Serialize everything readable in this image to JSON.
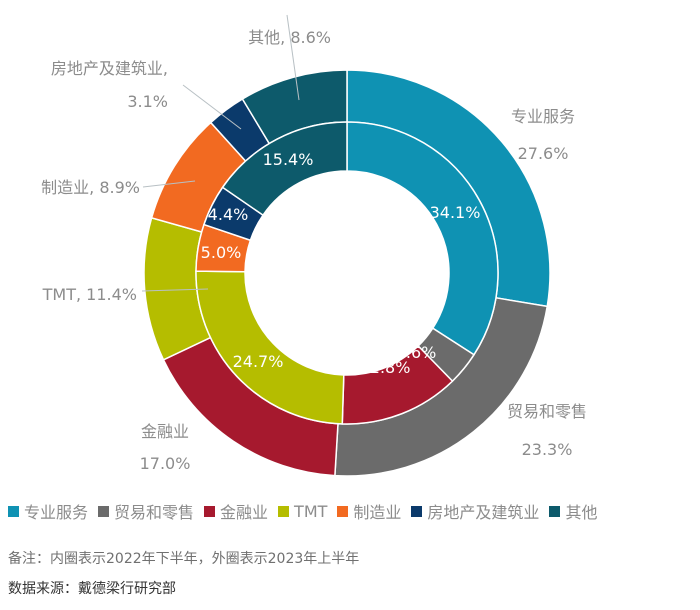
{
  "chart_data": {
    "type": "pie",
    "subtype": "nested-donut",
    "title": "",
    "categories": [
      "专业服务",
      "贸易和零售",
      "金融业",
      "TMT",
      "制造业",
      "房地产及建筑业",
      "其他"
    ],
    "colors": [
      "#0f92b3",
      "#6b6b6b",
      "#a6192e",
      "#b5bd00",
      "#f26a21",
      "#0b3a6b",
      "#0d5a6b"
    ],
    "series": [
      {
        "name": "2022年下半年 (内圈)",
        "ring": "inner",
        "values": [
          34.1,
          3.6,
          12.8,
          24.7,
          5.0,
          4.4,
          15.4
        ]
      },
      {
        "name": "2023年上半年 (外圈)",
        "ring": "outer",
        "values": [
          27.6,
          23.3,
          17.0,
          11.4,
          8.9,
          3.1,
          8.6
        ]
      }
    ],
    "unit": "%",
    "legend_position": "bottom"
  },
  "outer_labels": [
    {
      "line1": "专业服务",
      "line2": "27.6%"
    },
    {
      "line1": "贸易和零售",
      "line2": "23.3%"
    },
    {
      "line1": "金融业",
      "line2": "17.0%"
    },
    {
      "line1": "TMT, 11.4%",
      "line2": ""
    },
    {
      "line1": "制造业, 8.9%",
      "line2": ""
    },
    {
      "line1": "房地产及建筑业,",
      "line2": "3.1%"
    },
    {
      "line1": "其他, 8.6%",
      "line2": ""
    }
  ],
  "inner_labels": [
    "34.1%",
    "3.6%",
    "12.8%",
    "24.7%",
    "5.0%",
    "4.4%",
    "15.4%"
  ],
  "legend": [
    {
      "label": "专业服务",
      "color": "#0f92b3"
    },
    {
      "label": "贸易和零售",
      "color": "#6b6b6b"
    },
    {
      "label": "金融业",
      "color": "#a6192e"
    },
    {
      "label": "TMT",
      "color": "#b5bd00"
    },
    {
      "label": "制造业",
      "color": "#f26a21"
    },
    {
      "label": "房地产及建筑业",
      "color": "#0b3a6b"
    },
    {
      "label": "其他",
      "color": "#0d5a6b"
    }
  ],
  "notes": {
    "remark": "备注：内圈表示2022年下半年，外圈表示2023年上半年",
    "source": "数据来源：戴德梁行研究部"
  }
}
